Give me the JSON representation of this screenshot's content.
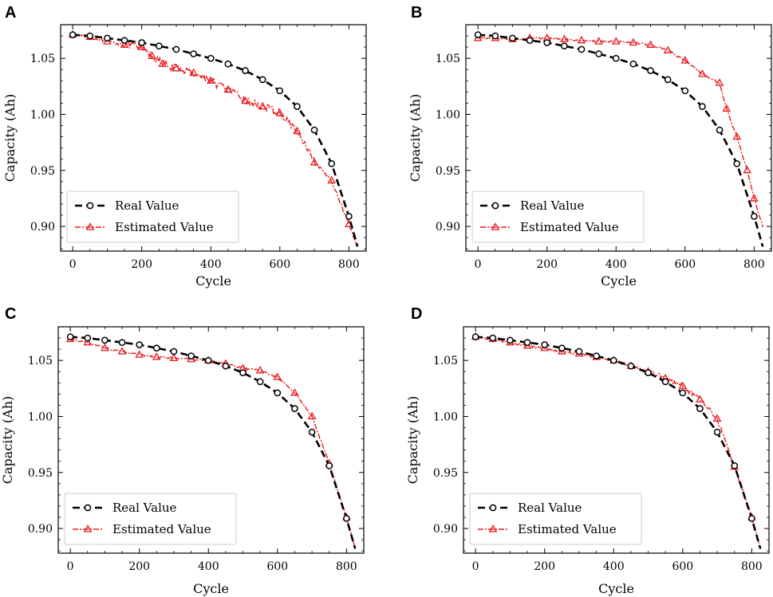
{
  "chart_data": [
    {
      "type": "line",
      "panel": "A",
      "xlabel": "Cycle",
      "ylabel": "Capacity (Ah)",
      "xlim": [
        -35,
        850
      ],
      "ylim": [
        0.878,
        1.08
      ],
      "xticks": [
        0,
        200,
        400,
        600,
        800
      ],
      "yticks": [
        0.9,
        0.95,
        1.0,
        1.05
      ],
      "ytick_labels": [
        "0.90",
        "0.95",
        "1.00",
        "1.05"
      ],
      "legend": [
        "Real Value",
        "Estimated Value"
      ],
      "legend_position": "bottom-left",
      "series": [
        {
          "name": "Real Value",
          "color": "#000000",
          "marker": "circle",
          "style": "dashed",
          "x": [
            0,
            50,
            100,
            150,
            200,
            250,
            300,
            350,
            400,
            450,
            500,
            550,
            600,
            650,
            700,
            750,
            800,
            825
          ],
          "y": [
            1.071,
            1.07,
            1.068,
            1.066,
            1.064,
            1.061,
            1.058,
            1.054,
            1.05,
            1.045,
            1.039,
            1.031,
            1.021,
            1.007,
            0.986,
            0.956,
            0.909,
            0.882
          ]
        },
        {
          "name": "Estimated Value",
          "color": "#e8191c",
          "marker": "triangle",
          "style": "dashdot",
          "x": [
            0,
            50,
            100,
            150,
            200,
            230,
            260,
            300,
            350,
            400,
            450,
            500,
            550,
            600,
            650,
            700,
            750,
            800,
            825
          ],
          "y": [
            1.071,
            1.069,
            1.065,
            1.062,
            1.06,
            1.052,
            1.045,
            1.041,
            1.037,
            1.03,
            1.022,
            1.012,
            1.007,
            1.001,
            0.985,
            0.957,
            0.941,
            0.902,
            0.882
          ]
        }
      ]
    },
    {
      "type": "line",
      "panel": "B",
      "xlabel": "Cycle",
      "ylabel": "Capacity (Ah)",
      "xlim": [
        -35,
        850
      ],
      "ylim": [
        0.878,
        1.08
      ],
      "xticks": [
        0,
        200,
        400,
        600,
        800
      ],
      "yticks": [
        0.9,
        0.95,
        1.0,
        1.05
      ],
      "ytick_labels": [
        "0.90",
        "0.95",
        "1.00",
        "1.05"
      ],
      "legend": [
        "Real Value",
        "Estimated Value"
      ],
      "legend_position": "bottom-left",
      "series": [
        {
          "name": "Real Value",
          "color": "#000000",
          "marker": "circle",
          "style": "dashed",
          "x": [
            0,
            50,
            100,
            150,
            200,
            250,
            300,
            350,
            400,
            450,
            500,
            550,
            600,
            650,
            700,
            750,
            800,
            825
          ],
          "y": [
            1.071,
            1.07,
            1.068,
            1.066,
            1.064,
            1.061,
            1.058,
            1.054,
            1.05,
            1.045,
            1.039,
            1.031,
            1.021,
            1.007,
            0.986,
            0.956,
            0.909,
            0.882
          ]
        },
        {
          "name": "Estimated Value",
          "color": "#e8191c",
          "marker": "triangle",
          "style": "dashdot",
          "x": [
            0,
            50,
            100,
            150,
            200,
            250,
            300,
            350,
            400,
            450,
            500,
            550,
            600,
            650,
            700,
            720,
            750,
            780,
            800,
            825
          ],
          "y": [
            1.068,
            1.068,
            1.067,
            1.068,
            1.068,
            1.067,
            1.066,
            1.065,
            1.065,
            1.064,
            1.062,
            1.057,
            1.048,
            1.036,
            1.028,
            1.005,
            0.98,
            0.95,
            0.925,
            0.9
          ]
        }
      ]
    },
    {
      "type": "line",
      "panel": "C",
      "xlabel": "Cycle",
      "ylabel": "Capacity (Ah)",
      "xlim": [
        -35,
        850
      ],
      "ylim": [
        0.878,
        1.08
      ],
      "xticks": [
        0,
        200,
        400,
        600,
        800
      ],
      "yticks": [
        0.9,
        0.95,
        1.0,
        1.05
      ],
      "ytick_labels": [
        "0.90",
        "0.95",
        "1.00",
        "1.05"
      ],
      "legend": [
        "Real Value",
        "Estimated Value"
      ],
      "legend_position": "bottom-left",
      "series": [
        {
          "name": "Real Value",
          "color": "#000000",
          "marker": "circle",
          "style": "dashed",
          "x": [
            0,
            50,
            100,
            150,
            200,
            250,
            300,
            350,
            400,
            450,
            500,
            550,
            600,
            650,
            700,
            750,
            800,
            825
          ],
          "y": [
            1.071,
            1.07,
            1.068,
            1.066,
            1.064,
            1.061,
            1.058,
            1.054,
            1.05,
            1.045,
            1.039,
            1.031,
            1.021,
            1.007,
            0.986,
            0.956,
            0.909,
            0.882
          ]
        },
        {
          "name": "Estimated Value",
          "color": "#e8191c",
          "marker": "triangle",
          "style": "dashdot",
          "x": [
            0,
            50,
            100,
            150,
            200,
            250,
            300,
            350,
            400,
            450,
            500,
            550,
            600,
            650,
            700,
            750,
            800,
            825
          ],
          "y": [
            1.069,
            1.066,
            1.061,
            1.058,
            1.055,
            1.053,
            1.052,
            1.051,
            1.05,
            1.047,
            1.043,
            1.041,
            1.035,
            1.021,
            1.0,
            0.958,
            0.91,
            0.882
          ]
        }
      ]
    },
    {
      "type": "line",
      "panel": "D",
      "xlabel": "Cycle",
      "ylabel": "Capacity (Ah)",
      "xlim": [
        -35,
        850
      ],
      "ylim": [
        0.878,
        1.08
      ],
      "xticks": [
        0,
        200,
        400,
        600,
        800
      ],
      "yticks": [
        0.9,
        0.95,
        1.0,
        1.05
      ],
      "ytick_labels": [
        "0.90",
        "0.95",
        "1.00",
        "1.05"
      ],
      "legend": [
        "Real Value",
        "Estimated Value"
      ],
      "legend_position": "bottom-left",
      "series": [
        {
          "name": "Real Value",
          "color": "#000000",
          "marker": "circle",
          "style": "dashed",
          "x": [
            0,
            50,
            100,
            150,
            200,
            250,
            300,
            350,
            400,
            450,
            500,
            550,
            600,
            650,
            700,
            750,
            800,
            825
          ],
          "y": [
            1.071,
            1.07,
            1.068,
            1.066,
            1.064,
            1.061,
            1.058,
            1.054,
            1.05,
            1.045,
            1.039,
            1.031,
            1.021,
            1.007,
            0.986,
            0.956,
            0.909,
            0.882
          ]
        },
        {
          "name": "Estimated Value",
          "color": "#e8191c",
          "marker": "triangle",
          "style": "dashdot",
          "x": [
            0,
            50,
            100,
            150,
            200,
            250,
            300,
            350,
            400,
            450,
            500,
            550,
            600,
            650,
            700,
            750,
            800,
            825
          ],
          "y": [
            1.071,
            1.069,
            1.066,
            1.063,
            1.061,
            1.058,
            1.056,
            1.053,
            1.05,
            1.045,
            1.04,
            1.034,
            1.027,
            1.015,
            0.998,
            0.955,
            0.91,
            0.882
          ]
        }
      ]
    }
  ]
}
